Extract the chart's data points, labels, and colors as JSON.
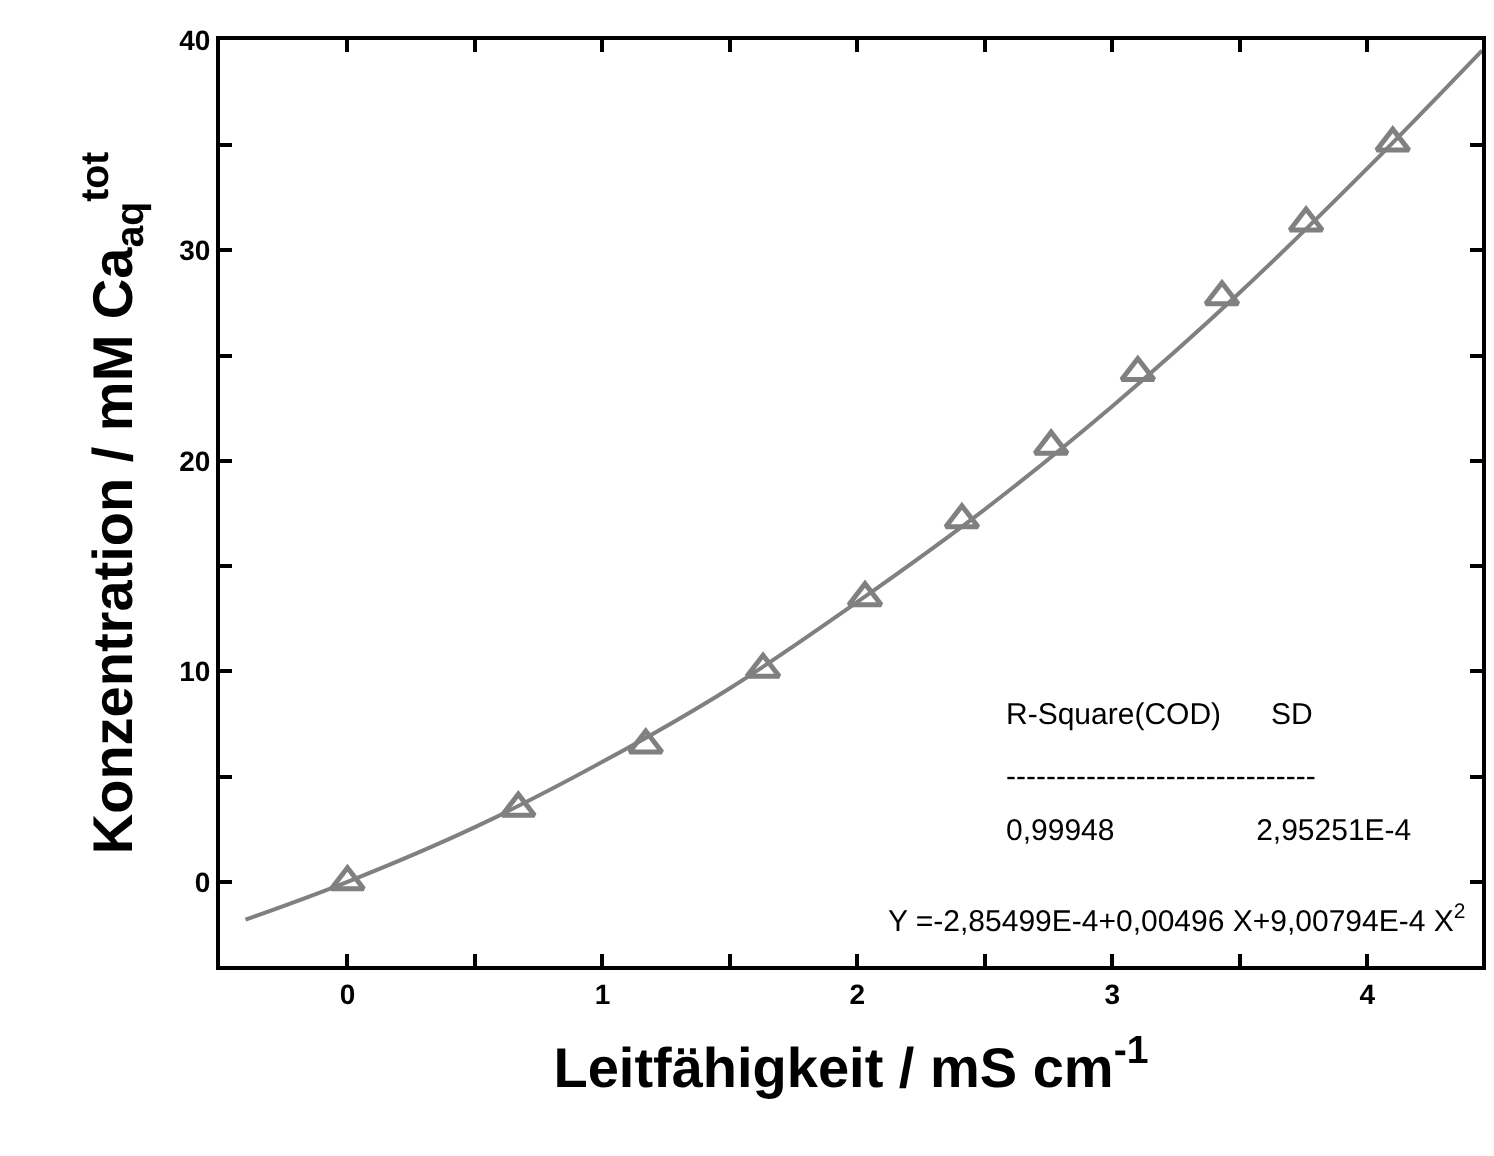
{
  "chart_data": {
    "type": "scatter",
    "xlabel": "Leitfähigkeit / mS cm$^{-1}$",
    "ylabel": "Konzentration / mM Ca$_{aq}$$^{tot}$",
    "xlim": [
      -0.5,
      4.45
    ],
    "ylim": [
      -4,
      40
    ],
    "xticks": [
      {
        "value": -0.5,
        "label": null
      },
      0,
      {
        "value": 0.5,
        "label": null
      },
      1,
      {
        "value": 1.5,
        "label": null
      },
      2,
      {
        "value": 2.5,
        "label": null
      },
      3,
      {
        "value": 3.5,
        "label": null
      },
      4
    ],
    "yticks": [
      0,
      {
        "value": 5,
        "label": null
      },
      10,
      {
        "value": 15,
        "label": null
      },
      20,
      {
        "value": 25,
        "label": null
      },
      30,
      {
        "value": 35,
        "label": null
      },
      40
    ],
    "series": [
      {
        "color": "#808080",
        "marker": "triangle",
        "x": [
          0,
          0.67,
          1.17,
          1.63,
          2.03,
          2.41,
          2.76,
          3.1,
          3.43,
          3.76,
          4.1
        ],
        "values": [
          0,
          3.5,
          6.5,
          10.1,
          13.5,
          17.2,
          20.7,
          24.2,
          27.8,
          31.3,
          35.1
        ]
      },
      {
        "type": "line",
        "color": "#808080",
        "marker": "none",
        "line_style": "solid",
        "x": [
          -0.4,
          0,
          0.5,
          1,
          1.5,
          2,
          2.5,
          3,
          3.5,
          4,
          4.45
        ],
        "values": [
          -1.8,
          0,
          2.6,
          5.7,
          9.2,
          13.3,
          17.7,
          22.6,
          28.0,
          33.9,
          39.5
        ]
      }
    ],
    "annotations": [
      "R-Square(COD)      SD",
      "-------------------------------",
      "0,99948                 2,95251E-4",
      "Y =-2,85499E-4+0,00496 X+9,00794E-4 X$^{2}$"
    ]
  }
}
